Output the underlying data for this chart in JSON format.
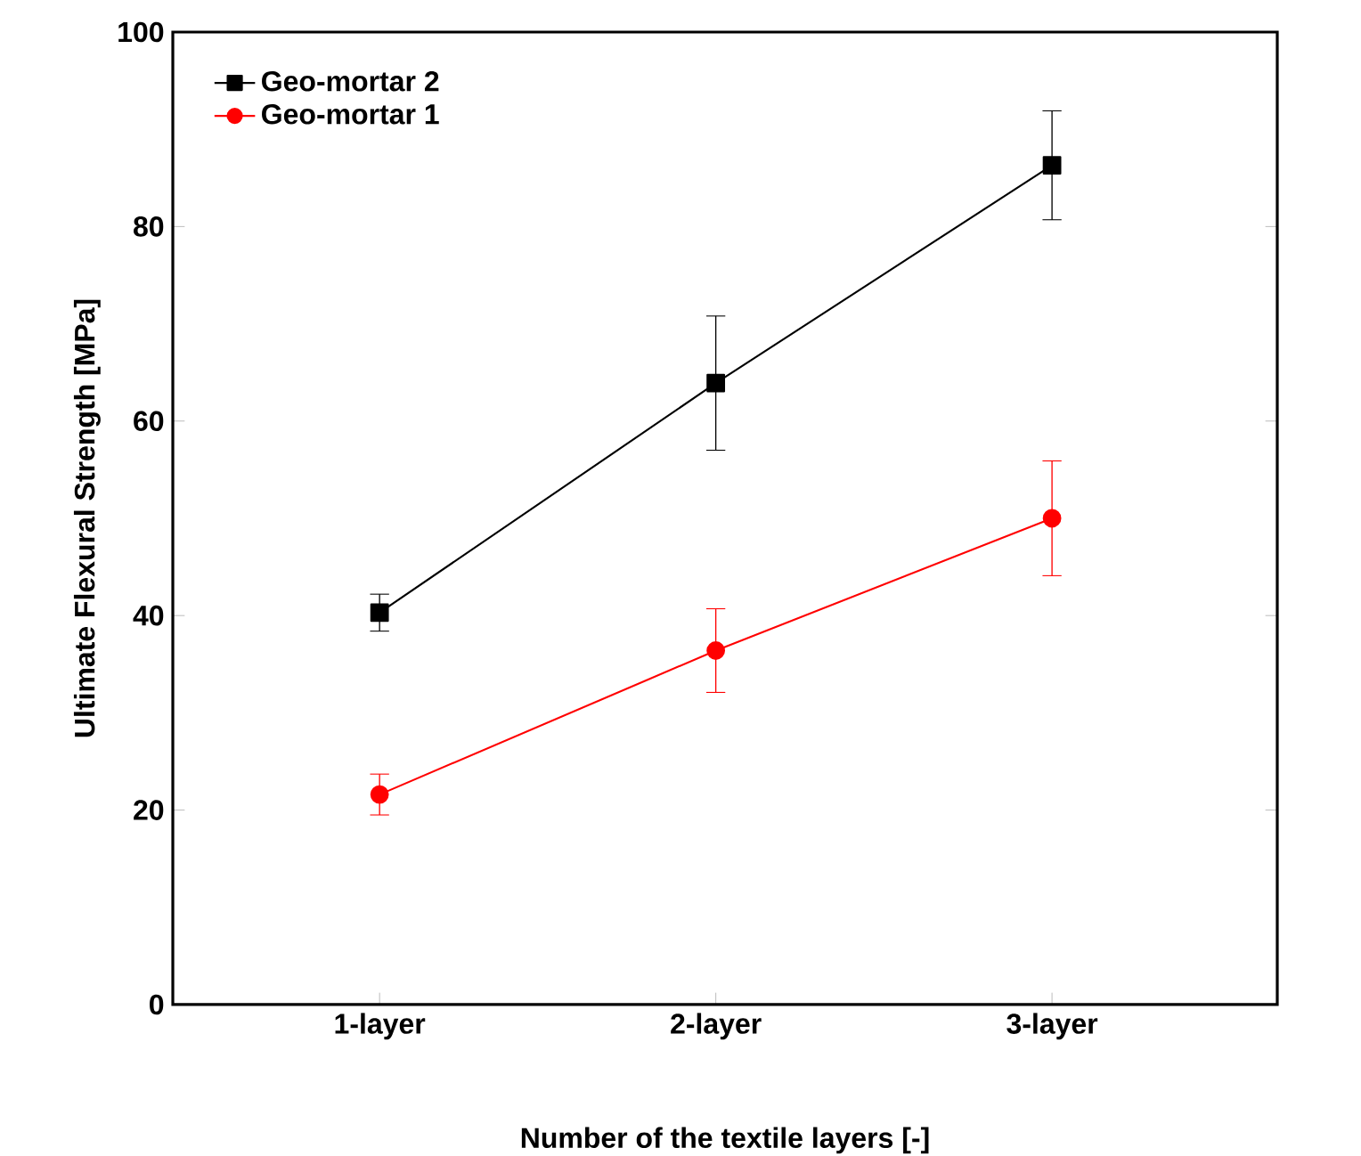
{
  "chart_data": {
    "type": "line",
    "xlabel": "Number of the textile layers [-]",
    "ylabel": "Ultimate Flexural Strength [MPa]",
    "categories": [
      "1-layer",
      "2-layer",
      "3-layer"
    ],
    "series": [
      {
        "name": "Geo-mortar 2",
        "color": "#000000",
        "marker": "square",
        "values": [
          40.3,
          63.9,
          86.3
        ],
        "errors": [
          1.9,
          6.9,
          5.6
        ]
      },
      {
        "name": "Geo-mortar 1",
        "color": "#ff0000",
        "marker": "circle",
        "values": [
          21.6,
          36.4,
          50.0
        ],
        "errors": [
          2.1,
          4.3,
          5.9
        ]
      }
    ],
    "ylim": [
      0,
      100
    ],
    "yticks": [
      0,
      20,
      40,
      60,
      80,
      100
    ],
    "legend": "top left",
    "grid": false,
    "line_style": "solid"
  }
}
